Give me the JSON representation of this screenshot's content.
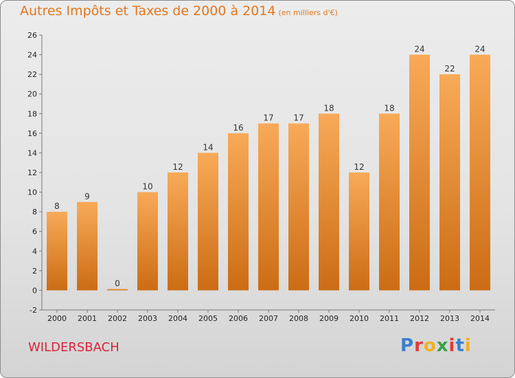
{
  "header": {
    "title": "Autres Impôts et Taxes de 2000 à 2014",
    "unit": "(en milliers d'€)"
  },
  "footer": {
    "commune": "WILDERSBACH",
    "logo_text": "Proxiti",
    "logo_colors": [
      "#3a7fd0",
      "#e23b3b",
      "#f0b020",
      "#3aa04a",
      "#e23b3b",
      "#3a7fd0",
      "#f0b020"
    ]
  },
  "colors": {
    "bar_light": "#f8aa58",
    "bar_dark": "#cc6c14",
    "title": "#e0771e",
    "commune": "#d8243a"
  },
  "chart_data": {
    "type": "bar",
    "categories": [
      "2000",
      "2001",
      "2002",
      "2003",
      "2004",
      "2005",
      "2006",
      "2007",
      "2008",
      "2009",
      "2010",
      "2011",
      "2012",
      "2013",
      "2014"
    ],
    "values": [
      8,
      9,
      0,
      10,
      12,
      14,
      16,
      17,
      17,
      18,
      12,
      18,
      24,
      22,
      24
    ],
    "value_labels": [
      "8",
      "9",
      "0",
      "10",
      "12",
      "14",
      "16",
      "17",
      "17",
      "18",
      "12",
      "18",
      "24",
      "22",
      "24"
    ],
    "ylim": [
      -2,
      26
    ],
    "yticks": [
      -2,
      0,
      2,
      4,
      6,
      8,
      10,
      12,
      14,
      16,
      18,
      20,
      22,
      24,
      26
    ],
    "grid": false,
    "legend": "none"
  }
}
